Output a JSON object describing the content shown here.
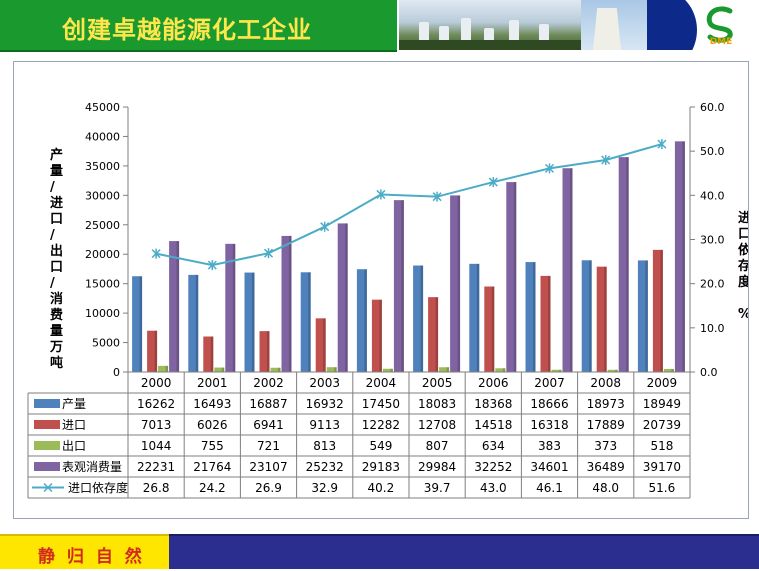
{
  "header": {
    "title": "创建卓越能源化工企业",
    "logo_text": "DME"
  },
  "footer": {
    "slogan": "静 归 自 然"
  },
  "colors": {
    "production": "#4f81bd",
    "import": "#c0504d",
    "export": "#9bbb59",
    "consumption": "#8064a2",
    "dependency": "#4bacc6"
  },
  "chart_data": {
    "type": "bar",
    "categories": [
      "2000",
      "2001",
      "2002",
      "2003",
      "2004",
      "2005",
      "2006",
      "2007",
      "2008",
      "2009"
    ],
    "series": [
      {
        "name": "产量",
        "type": "bar",
        "axis": "left",
        "values": [
          16262,
          16493,
          16887,
          16932,
          17450,
          18083,
          18368,
          18666,
          18973,
          18949
        ]
      },
      {
        "name": "进口",
        "type": "bar",
        "axis": "left",
        "values": [
          7013,
          6026,
          6941,
          9113,
          12282,
          12708,
          14518,
          16318,
          17889,
          20739
        ]
      },
      {
        "name": "出口",
        "type": "bar",
        "axis": "left",
        "values": [
          1044,
          755,
          721,
          813,
          549,
          807,
          634,
          383,
          373,
          518
        ]
      },
      {
        "name": "表观消费量",
        "type": "bar",
        "axis": "left",
        "values": [
          22231,
          21764,
          23107,
          25232,
          29183,
          29984,
          32252,
          34601,
          36489,
          39170
        ]
      },
      {
        "name": "进口依存度",
        "type": "line",
        "axis": "right",
        "values": [
          26.8,
          24.2,
          26.9,
          32.9,
          40.2,
          39.7,
          43.0,
          46.1,
          48.0,
          51.6
        ]
      }
    ],
    "ylabel_left": "产量/进口/出口/消费量 万吨",
    "ylabel_right": "进口依存度 %",
    "ylim_left": [
      0,
      45000
    ],
    "ylim_right": [
      0,
      60
    ],
    "yticks_left": [
      "0",
      "5000",
      "10000",
      "15000",
      "20000",
      "25000",
      "30000",
      "35000",
      "40000",
      "45000"
    ],
    "yticks_right": [
      "0.0",
      "10.0",
      "20.0",
      "30.0",
      "40.0",
      "50.0",
      "60.0"
    ],
    "data_table": true
  }
}
